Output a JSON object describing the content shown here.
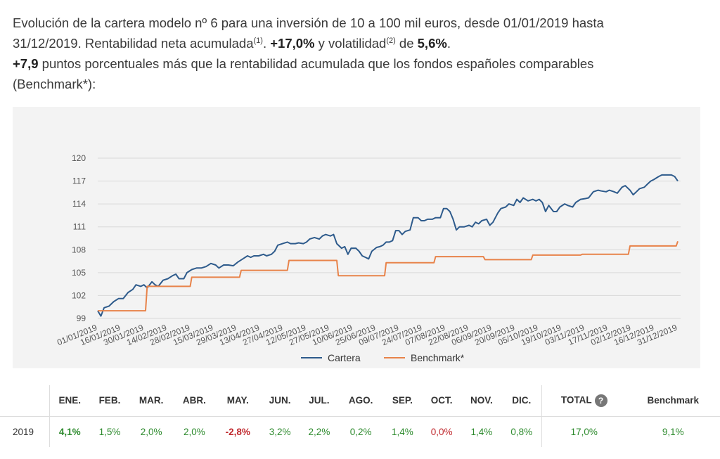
{
  "intro": {
    "line1": "Evolución de la cartera modelo nº 6 para una inversión de 10 a 100 mil euros, desde 01/01/2019 hasta",
    "line2_a": "31/12/2019. Rentabilidad neta acumulada",
    "sup1": "(1)",
    "line2_b": ". ",
    "return_total": "+17,0%",
    "line2_c": " y volatilidad",
    "sup2": "(2)",
    "line2_d": " de ",
    "volatility": "5,6%",
    "line2_e": ".",
    "spread": "+7,9",
    "line3": " puntos porcentuales más que la rentabilidad acumulada que los fondos españoles comparables",
    "line4": "(Benchmark*):"
  },
  "chart_data": {
    "type": "line",
    "y_ticks": [
      "99",
      "102",
      "105",
      "108",
      "111",
      "114",
      "117",
      "120"
    ],
    "ylim": [
      99,
      120
    ],
    "x_ticks": [
      "01/01/2019",
      "16/01/2019",
      "30/01/2019",
      "14/02/2019",
      "28/02/2019",
      "15/03/2019",
      "29/03/2019",
      "13/04/2019",
      "27/04/2019",
      "12/05/2019",
      "27/05/2019",
      "10/06/2019",
      "25/06/2019",
      "09/07/2019",
      "24/07/2019",
      "07/08/2019",
      "22/08/2019",
      "06/09/2019",
      "20/09/2019",
      "05/10/2019",
      "19/10/2019",
      "03/11/2019",
      "17/11/2019",
      "02/12/2019",
      "16/12/2019",
      "31/12/2019"
    ],
    "grid": true,
    "legend_position": "bottom",
    "series": [
      {
        "name": "Cartera",
        "color": "#2e5b8c",
        "points": [
          [
            "2019-01-01",
            100.0
          ],
          [
            "2019-01-03",
            99.3
          ],
          [
            "2019-01-05",
            100.4
          ],
          [
            "2019-01-08",
            100.6
          ],
          [
            "2019-01-11",
            101.2
          ],
          [
            "2019-01-14",
            101.6
          ],
          [
            "2019-01-17",
            101.6
          ],
          [
            "2019-01-20",
            102.4
          ],
          [
            "2019-01-23",
            102.8
          ],
          [
            "2019-01-25",
            103.4
          ],
          [
            "2019-01-28",
            103.2
          ],
          [
            "2019-01-30",
            103.4
          ],
          [
            "2019-02-01",
            103.0
          ],
          [
            "2019-02-04",
            103.8
          ],
          [
            "2019-02-06",
            103.4
          ],
          [
            "2019-02-08",
            103.2
          ],
          [
            "2019-02-11",
            104.0
          ],
          [
            "2019-02-14",
            104.2
          ],
          [
            "2019-02-17",
            104.6
          ],
          [
            "2019-02-19",
            104.8
          ],
          [
            "2019-02-21",
            104.2
          ],
          [
            "2019-02-24",
            104.2
          ],
          [
            "2019-02-26",
            105.0
          ],
          [
            "2019-03-01",
            105.4
          ],
          [
            "2019-03-04",
            105.6
          ],
          [
            "2019-03-07",
            105.6
          ],
          [
            "2019-03-10",
            105.8
          ],
          [
            "2019-03-13",
            106.2
          ],
          [
            "2019-03-16",
            106.0
          ],
          [
            "2019-03-18",
            105.6
          ],
          [
            "2019-03-21",
            106.0
          ],
          [
            "2019-03-24",
            106.0
          ],
          [
            "2019-03-27",
            105.9
          ],
          [
            "2019-03-30",
            106.4
          ],
          [
            "2019-04-02",
            106.8
          ],
          [
            "2019-04-05",
            107.2
          ],
          [
            "2019-04-07",
            107.0
          ],
          [
            "2019-04-09",
            107.2
          ],
          [
            "2019-04-12",
            107.2
          ],
          [
            "2019-04-15",
            107.4
          ],
          [
            "2019-04-17",
            107.2
          ],
          [
            "2019-04-20",
            107.4
          ],
          [
            "2019-04-22",
            107.8
          ],
          [
            "2019-04-24",
            108.6
          ],
          [
            "2019-04-27",
            108.8
          ],
          [
            "2019-04-30",
            109.0
          ],
          [
            "2019-05-02",
            108.8
          ],
          [
            "2019-05-05",
            108.8
          ],
          [
            "2019-05-07",
            108.9
          ],
          [
            "2019-05-10",
            108.8
          ],
          [
            "2019-05-12",
            109.0
          ],
          [
            "2019-05-14",
            109.4
          ],
          [
            "2019-05-17",
            109.6
          ],
          [
            "2019-05-20",
            109.4
          ],
          [
            "2019-05-22",
            109.8
          ],
          [
            "2019-05-24",
            110.0
          ],
          [
            "2019-05-27",
            109.8
          ],
          [
            "2019-05-29",
            110.0
          ],
          [
            "2019-05-31",
            108.8
          ],
          [
            "2019-06-03",
            108.2
          ],
          [
            "2019-06-05",
            108.4
          ],
          [
            "2019-06-07",
            107.4
          ],
          [
            "2019-06-09",
            108.2
          ],
          [
            "2019-06-12",
            108.2
          ],
          [
            "2019-06-14",
            107.8
          ],
          [
            "2019-06-16",
            107.2
          ],
          [
            "2019-06-18",
            107.0
          ],
          [
            "2019-06-20",
            106.8
          ],
          [
            "2019-06-22",
            107.8
          ],
          [
            "2019-06-25",
            108.3
          ],
          [
            "2019-06-27",
            108.4
          ],
          [
            "2019-06-29",
            108.6
          ],
          [
            "2019-07-01",
            109.0
          ],
          [
            "2019-07-03",
            109.0
          ],
          [
            "2019-07-05",
            109.2
          ],
          [
            "2019-07-07",
            110.5
          ],
          [
            "2019-07-09",
            110.5
          ],
          [
            "2019-07-11",
            110.0
          ],
          [
            "2019-07-13",
            110.4
          ],
          [
            "2019-07-16",
            110.6
          ],
          [
            "2019-07-18",
            112.2
          ],
          [
            "2019-07-21",
            112.2
          ],
          [
            "2019-07-23",
            111.8
          ],
          [
            "2019-07-25",
            111.8
          ],
          [
            "2019-07-27",
            112.0
          ],
          [
            "2019-07-30",
            112.0
          ],
          [
            "2019-08-01",
            112.2
          ],
          [
            "2019-08-04",
            112.2
          ],
          [
            "2019-08-06",
            113.4
          ],
          [
            "2019-08-08",
            113.4
          ],
          [
            "2019-08-10",
            113.0
          ],
          [
            "2019-08-12",
            112.0
          ],
          [
            "2019-08-14",
            110.6
          ],
          [
            "2019-08-16",
            111.0
          ],
          [
            "2019-08-19",
            111.0
          ],
          [
            "2019-08-22",
            111.2
          ],
          [
            "2019-08-24",
            111.0
          ],
          [
            "2019-08-26",
            111.6
          ],
          [
            "2019-08-28",
            111.4
          ],
          [
            "2019-08-30",
            111.8
          ],
          [
            "2019-09-02",
            112.0
          ],
          [
            "2019-09-04",
            111.2
          ],
          [
            "2019-09-06",
            111.6
          ],
          [
            "2019-09-09",
            112.8
          ],
          [
            "2019-09-11",
            113.4
          ],
          [
            "2019-09-14",
            113.6
          ],
          [
            "2019-09-16",
            114.0
          ],
          [
            "2019-09-19",
            113.8
          ],
          [
            "2019-09-21",
            114.6
          ],
          [
            "2019-09-23",
            114.2
          ],
          [
            "2019-09-25",
            114.8
          ],
          [
            "2019-09-28",
            114.4
          ],
          [
            "2019-10-01",
            114.6
          ],
          [
            "2019-10-03",
            114.4
          ],
          [
            "2019-10-05",
            114.6
          ],
          [
            "2019-10-07",
            114.2
          ],
          [
            "2019-10-09",
            113.0
          ],
          [
            "2019-10-11",
            113.8
          ],
          [
            "2019-10-14",
            113.0
          ],
          [
            "2019-10-16",
            113.0
          ],
          [
            "2019-10-18",
            113.6
          ],
          [
            "2019-10-21",
            114.0
          ],
          [
            "2019-10-23",
            113.8
          ],
          [
            "2019-10-26",
            113.6
          ],
          [
            "2019-10-28",
            114.2
          ],
          [
            "2019-10-31",
            114.6
          ],
          [
            "2019-11-03",
            114.7
          ],
          [
            "2019-11-05",
            114.8
          ],
          [
            "2019-11-08",
            115.6
          ],
          [
            "2019-11-11",
            115.8
          ],
          [
            "2019-11-13",
            115.7
          ],
          [
            "2019-11-16",
            115.6
          ],
          [
            "2019-11-18",
            115.8
          ],
          [
            "2019-11-21",
            115.6
          ],
          [
            "2019-11-23",
            115.4
          ],
          [
            "2019-11-26",
            116.2
          ],
          [
            "2019-11-28",
            116.4
          ],
          [
            "2019-12-01",
            115.8
          ],
          [
            "2019-12-03",
            115.2
          ],
          [
            "2019-12-05",
            115.6
          ],
          [
            "2019-12-07",
            116.0
          ],
          [
            "2019-12-10",
            116.2
          ],
          [
            "2019-12-12",
            116.6
          ],
          [
            "2019-12-14",
            117.0
          ],
          [
            "2019-12-16",
            117.2
          ],
          [
            "2019-12-19",
            117.6
          ],
          [
            "2019-12-21",
            117.8
          ],
          [
            "2019-12-24",
            117.8
          ],
          [
            "2019-12-27",
            117.8
          ],
          [
            "2019-12-29",
            117.6
          ],
          [
            "2019-12-31",
            117.0
          ]
        ]
      },
      {
        "name": "Benchmark*",
        "color": "#e8834a",
        "points": [
          [
            "2019-01-01",
            100.0
          ],
          [
            "2019-01-31",
            100.0
          ],
          [
            "2019-02-01",
            103.2
          ],
          [
            "2019-02-28",
            103.2
          ],
          [
            "2019-03-01",
            104.4
          ],
          [
            "2019-03-31",
            104.4
          ],
          [
            "2019-04-01",
            105.3
          ],
          [
            "2019-04-30",
            105.3
          ],
          [
            "2019-05-01",
            106.6
          ],
          [
            "2019-05-31",
            106.6
          ],
          [
            "2019-06-01",
            104.6
          ],
          [
            "2019-06-30",
            104.6
          ],
          [
            "2019-07-01",
            106.3
          ],
          [
            "2019-07-31",
            106.3
          ],
          [
            "2019-08-01",
            107.1
          ],
          [
            "2019-08-31",
            107.1
          ],
          [
            "2019-09-01",
            106.7
          ],
          [
            "2019-09-30",
            106.7
          ],
          [
            "2019-10-01",
            107.3
          ],
          [
            "2019-10-31",
            107.3
          ],
          [
            "2019-11-01",
            107.4
          ],
          [
            "2019-11-30",
            107.4
          ],
          [
            "2019-12-01",
            108.5
          ],
          [
            "2019-12-30",
            108.5
          ],
          [
            "2019-12-31",
            109.1
          ]
        ]
      }
    ]
  },
  "table": {
    "headers": [
      "ENE.",
      "FEB.",
      "MAR.",
      "ABR.",
      "MAY.",
      "JUN.",
      "JUL.",
      "AGO.",
      "SEP.",
      "OCT.",
      "NOV.",
      "DIC."
    ],
    "total_header": "TOTAL",
    "help_glyph": "?",
    "benchmark_header": "Benchmark",
    "row": {
      "year": "2019",
      "months": [
        "4,1%",
        "1,5%",
        "2,0%",
        "2,0%",
        "-2,8%",
        "3,2%",
        "2,2%",
        "0,2%",
        "1,4%",
        "0,0%",
        "1,4%",
        "0,8%"
      ],
      "total": "17,0%",
      "benchmark": "9,1%"
    },
    "colors": {
      "positive": "#2e8b2e",
      "negative": "#c0282d"
    }
  }
}
